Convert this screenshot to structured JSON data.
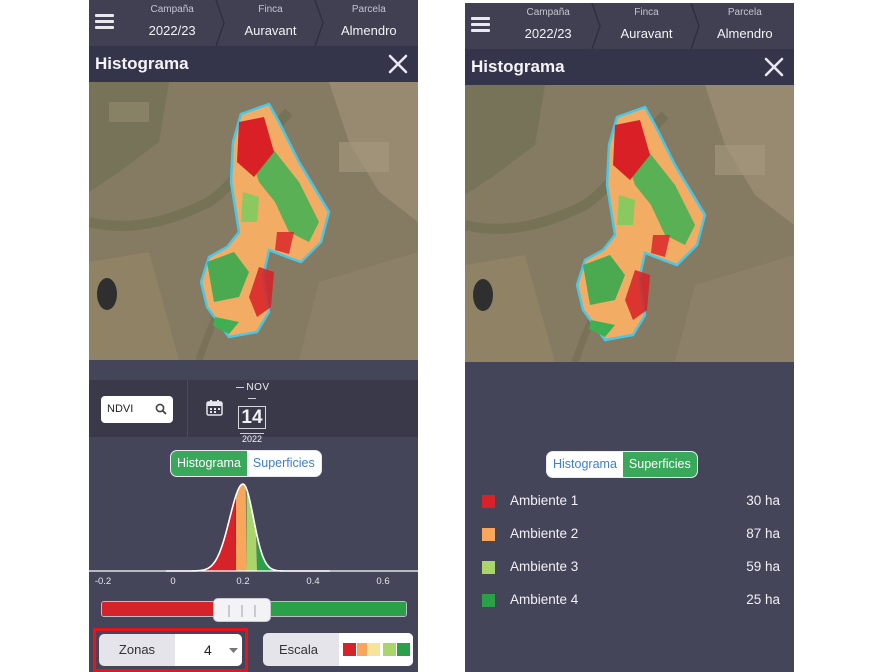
{
  "header": {
    "crumbs": [
      {
        "key": "Campaña",
        "value": "2022/23"
      },
      {
        "key": "Finca",
        "value": "Auravant"
      },
      {
        "key": "Parcela",
        "value": "Almendro"
      }
    ]
  },
  "panel": {
    "title": "Histograma"
  },
  "toolbar": {
    "index": "NDVI",
    "date": {
      "month": "NOV",
      "day": "14",
      "year": "2022"
    }
  },
  "tabs": {
    "histogram": "Histograma",
    "surfaces": "Superficies"
  },
  "chart_data": {
    "type": "area",
    "x_ticks": [
      "-0.2",
      "0",
      "0.2",
      "0.4",
      "0.6"
    ],
    "xlim": [
      -0.2,
      0.6
    ],
    "zones": [
      {
        "color": "#d62229",
        "from": 0.07,
        "to": 0.18
      },
      {
        "color": "#f7a65c",
        "from": 0.18,
        "to": 0.21
      },
      {
        "color": "#a9d56b",
        "from": 0.21,
        "to": 0.24
      },
      {
        "color": "#2aa148",
        "from": 0.24,
        "to": 0.32
      }
    ]
  },
  "controls": {
    "zonas_label": "Zonas",
    "zonas_value": "4",
    "escala_label": "Escala",
    "range_low_fraction": 0.45,
    "range_high_fraction": 0.53
  },
  "colors": {
    "red": "#d62229",
    "orange": "#f7a65c",
    "light_green": "#a9d56b",
    "green": "#2aa148"
  },
  "surfaces": [
    {
      "name": "Ambiente 1",
      "value": "30 ha",
      "color": "#d62229"
    },
    {
      "name": "Ambiente 2",
      "value": "87 ha",
      "color": "#f7a65c"
    },
    {
      "name": "Ambiente 3",
      "value": "59 ha",
      "color": "#a9d56b"
    },
    {
      "name": "Ambiente 4",
      "value": "25 ha",
      "color": "#2aa148"
    }
  ]
}
